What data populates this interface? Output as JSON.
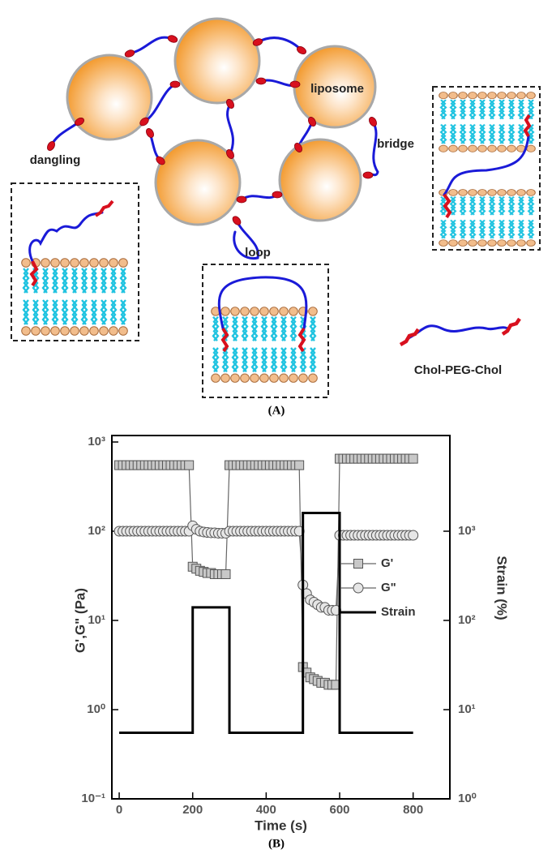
{
  "diagram": {
    "labels": [
      "dangling",
      "liposome",
      "bridge",
      "loop",
      "Chol-PEG-Chol"
    ],
    "caption": "(A)"
  },
  "chart_data": {
    "type": "line",
    "caption": "(B)",
    "xlabel": "Time (s)",
    "ylabel": "G',G\" (Pa)",
    "y2label": "Strain (%)",
    "xlim": [
      -20,
      900
    ],
    "xticks": [
      0,
      200,
      400,
      600,
      800
    ],
    "ylim": [
      0.1,
      1000
    ],
    "log_y": true,
    "yticks": [
      {
        "value": 0.1,
        "label": "10⁻¹"
      },
      {
        "value": 1,
        "label": "10⁰"
      },
      {
        "value": 10,
        "label": "10¹"
      },
      {
        "value": 100,
        "label": "10²"
      },
      {
        "value": 1000,
        "label": "10³"
      }
    ],
    "y2lim": [
      1,
      10000
    ],
    "log_y2": true,
    "y2ticks": [
      {
        "value": 1,
        "label": "10⁰"
      },
      {
        "value": 10,
        "label": "10¹"
      },
      {
        "value": 100,
        "label": "10²"
      },
      {
        "value": 1000,
        "label": "10³"
      }
    ],
    "legend": "center right",
    "x": [
      0,
      10,
      20,
      30,
      40,
      50,
      60,
      70,
      80,
      90,
      100,
      110,
      120,
      130,
      140,
      150,
      160,
      170,
      180,
      190,
      200,
      210,
      220,
      230,
      240,
      250,
      260,
      270,
      280,
      290,
      300,
      310,
      320,
      330,
      340,
      350,
      360,
      370,
      380,
      390,
      400,
      410,
      420,
      430,
      440,
      450,
      460,
      470,
      480,
      490,
      500,
      510,
      520,
      530,
      540,
      550,
      560,
      570,
      580,
      590,
      600,
      610,
      620,
      630,
      640,
      650,
      660,
      670,
      680,
      690,
      700,
      710,
      720,
      730,
      740,
      750,
      760,
      770,
      780,
      790,
      800
    ],
    "series": [
      {
        "name": "G'",
        "color": "#666666",
        "marker": "square",
        "values": [
          550,
          550,
          550,
          550,
          550,
          550,
          550,
          550,
          550,
          550,
          550,
          550,
          550,
          550,
          550,
          550,
          550,
          550,
          550,
          550,
          40,
          38,
          36,
          35,
          34,
          34,
          33,
          33,
          33,
          33,
          550,
          550,
          550,
          550,
          550,
          550,
          550,
          550,
          550,
          550,
          550,
          550,
          550,
          550,
          550,
          550,
          550,
          550,
          550,
          550,
          3,
          2.6,
          2.3,
          2.2,
          2.1,
          2,
          2,
          1.9,
          1.9,
          1.9,
          650,
          650,
          650,
          650,
          650,
          650,
          650,
          650,
          650,
          650,
          650,
          650,
          650,
          650,
          650,
          650,
          650,
          650,
          650,
          650,
          650
        ]
      },
      {
        "name": "G\"",
        "color": "#666666",
        "marker": "circle",
        "values": [
          100,
          100,
          100,
          100,
          100,
          100,
          100,
          100,
          100,
          100,
          100,
          100,
          100,
          100,
          100,
          100,
          100,
          100,
          100,
          100,
          115,
          105,
          100,
          98,
          97,
          96,
          96,
          95,
          95,
          95,
          100,
          100,
          100,
          100,
          100,
          100,
          100,
          100,
          100,
          100,
          100,
          100,
          100,
          100,
          100,
          100,
          100,
          100,
          100,
          100,
          25,
          20,
          17,
          16,
          15,
          14,
          14,
          13,
          13,
          13,
          90,
          90,
          90,
          90,
          90,
          90,
          90,
          90,
          90,
          90,
          90,
          90,
          90,
          90,
          90,
          90,
          90,
          90,
          90,
          90,
          90
        ]
      },
      {
        "name": "Strain",
        "color": "#000000",
        "axis": "y2",
        "x": [
          0,
          200,
          200,
          300,
          300,
          500,
          500,
          600,
          600,
          800
        ],
        "values": [
          5.5,
          5.5,
          140,
          140,
          5.5,
          5.5,
          1600,
          1600,
          5.5,
          5.5
        ]
      }
    ]
  }
}
